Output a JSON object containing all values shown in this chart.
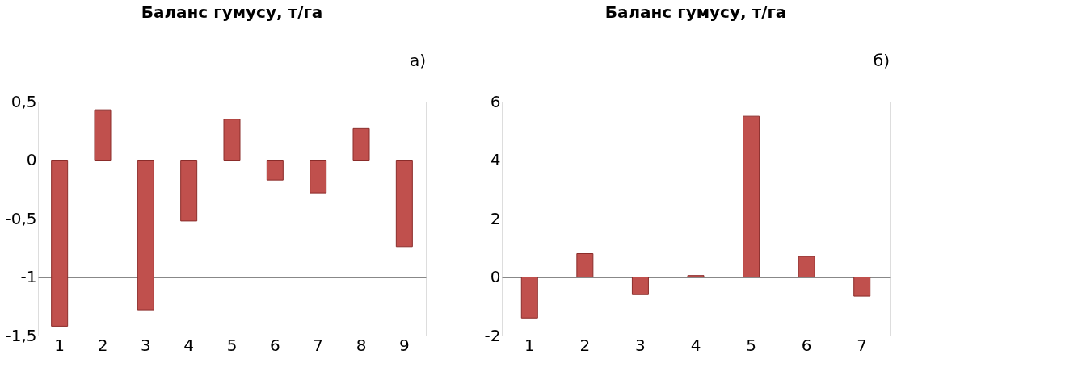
{
  "chart_data": [
    {
      "type": "bar",
      "title": "Баланс гумусу, т/га",
      "annotations": [
        "а)"
      ],
      "categories": [
        "1",
        "2",
        "3",
        "4",
        "5",
        "6",
        "7",
        "8",
        "9"
      ],
      "color": "#c0504d",
      "values": [
        -1.42,
        0.43,
        -1.28,
        -0.52,
        0.35,
        -0.17,
        -0.28,
        0.27,
        -0.74
      ],
      "ylim": [
        -1.5,
        0.5
      ],
      "yticks": [
        {
          "value": -1.5,
          "label": "-1,5"
        },
        {
          "value": -1,
          "label": "-1"
        },
        {
          "value": -0.5,
          "label": "-0,5"
        },
        {
          "value": 0,
          "label": "0"
        },
        {
          "value": 0.5,
          "label": "0,5"
        }
      ],
      "grid": "y"
    },
    {
      "type": "bar",
      "title": "Баланс гумусу, т/га",
      "annotations": [
        "б)"
      ],
      "categories": [
        "1",
        "2",
        "3",
        "4",
        "5",
        "6",
        "7"
      ],
      "color": "#c0504d",
      "values": [
        -1.4,
        0.8,
        -0.6,
        0.05,
        5.5,
        0.7,
        -0.65
      ],
      "ylim": [
        -2,
        6
      ],
      "yticks": [
        -2,
        0,
        2,
        4,
        6
      ],
      "grid": "y"
    }
  ]
}
